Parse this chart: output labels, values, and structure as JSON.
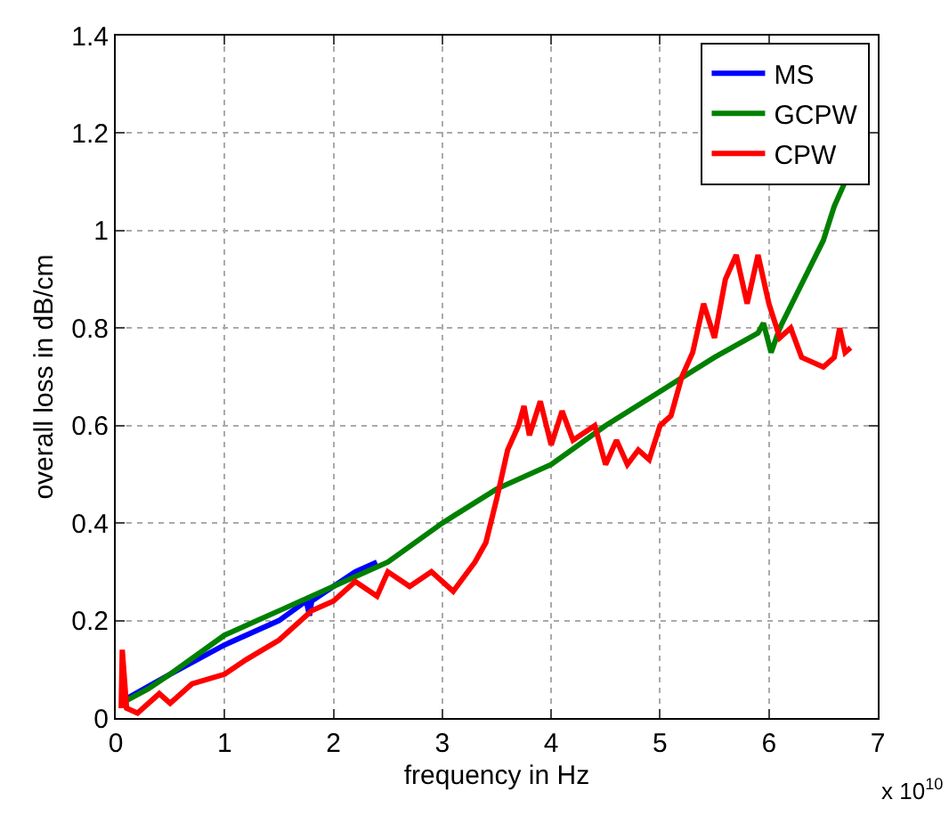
{
  "chart_data": {
    "type": "line",
    "xlabel": "frequency in Hz",
    "ylabel": "overall loss in dB/cm",
    "annotations": [
      "x 10$^{10}$"
    ],
    "xlim": [
      0,
      7
    ],
    "xticks": [
      0,
      1,
      2,
      3,
      4,
      5,
      6,
      7
    ],
    "ylim": [
      0,
      1.4
    ],
    "yticks": [
      0,
      0.2,
      0.4,
      0.6,
      0.8,
      1,
      1.2,
      1.4
    ],
    "grid": true,
    "legend": "top right",
    "line_style": "solid",
    "marker": "none",
    "series": [
      {
        "name": "MS",
        "color": "#0000ff",
        "x": [
          0.05,
          0.1,
          0.5,
          1.0,
          1.5,
          1.75,
          1.78,
          1.8,
          2.0,
          2.2,
          2.4
        ],
        "values": [
          0.03,
          0.04,
          0.09,
          0.15,
          0.2,
          0.24,
          0.21,
          0.24,
          0.27,
          0.3,
          0.32
        ]
      },
      {
        "name": "GCPW",
        "color": "#008000",
        "x": [
          0.05,
          0.3,
          0.5,
          1.0,
          1.3,
          1.5,
          2.0,
          2.5,
          3.0,
          3.5,
          4.0,
          4.5,
          5.0,
          5.5,
          5.9,
          5.95,
          6.02,
          6.1,
          6.3,
          6.5,
          6.6,
          6.7
        ],
        "values": [
          0.03,
          0.06,
          0.09,
          0.17,
          0.2,
          0.22,
          0.27,
          0.32,
          0.4,
          0.47,
          0.52,
          0.6,
          0.67,
          0.74,
          0.79,
          0.81,
          0.75,
          0.8,
          0.89,
          0.98,
          1.05,
          1.1
        ]
      },
      {
        "name": "CPW",
        "color": "#ff0000",
        "x": [
          0.05,
          0.06,
          0.1,
          0.2,
          0.4,
          0.5,
          0.7,
          1.0,
          1.2,
          1.5,
          1.8,
          2.0,
          2.2,
          2.4,
          2.5,
          2.7,
          2.9,
          3.1,
          3.3,
          3.4,
          3.5,
          3.6,
          3.7,
          3.75,
          3.8,
          3.9,
          4.0,
          4.1,
          4.2,
          4.4,
          4.5,
          4.6,
          4.7,
          4.8,
          4.9,
          5.0,
          5.1,
          5.2,
          5.3,
          5.4,
          5.5,
          5.6,
          5.7,
          5.8,
          5.9,
          6.0,
          6.1,
          6.2,
          6.3,
          6.5,
          6.6,
          6.65,
          6.7,
          6.75
        ],
        "values": [
          0.02,
          0.14,
          0.02,
          0.01,
          0.05,
          0.03,
          0.07,
          0.09,
          0.12,
          0.16,
          0.22,
          0.24,
          0.28,
          0.25,
          0.3,
          0.27,
          0.3,
          0.26,
          0.32,
          0.36,
          0.45,
          0.55,
          0.6,
          0.64,
          0.58,
          0.65,
          0.56,
          0.63,
          0.57,
          0.6,
          0.52,
          0.57,
          0.52,
          0.55,
          0.53,
          0.6,
          0.62,
          0.7,
          0.75,
          0.85,
          0.78,
          0.9,
          0.95,
          0.85,
          0.95,
          0.85,
          0.78,
          0.8,
          0.74,
          0.72,
          0.74,
          0.8,
          0.75,
          0.76
        ]
      }
    ]
  }
}
